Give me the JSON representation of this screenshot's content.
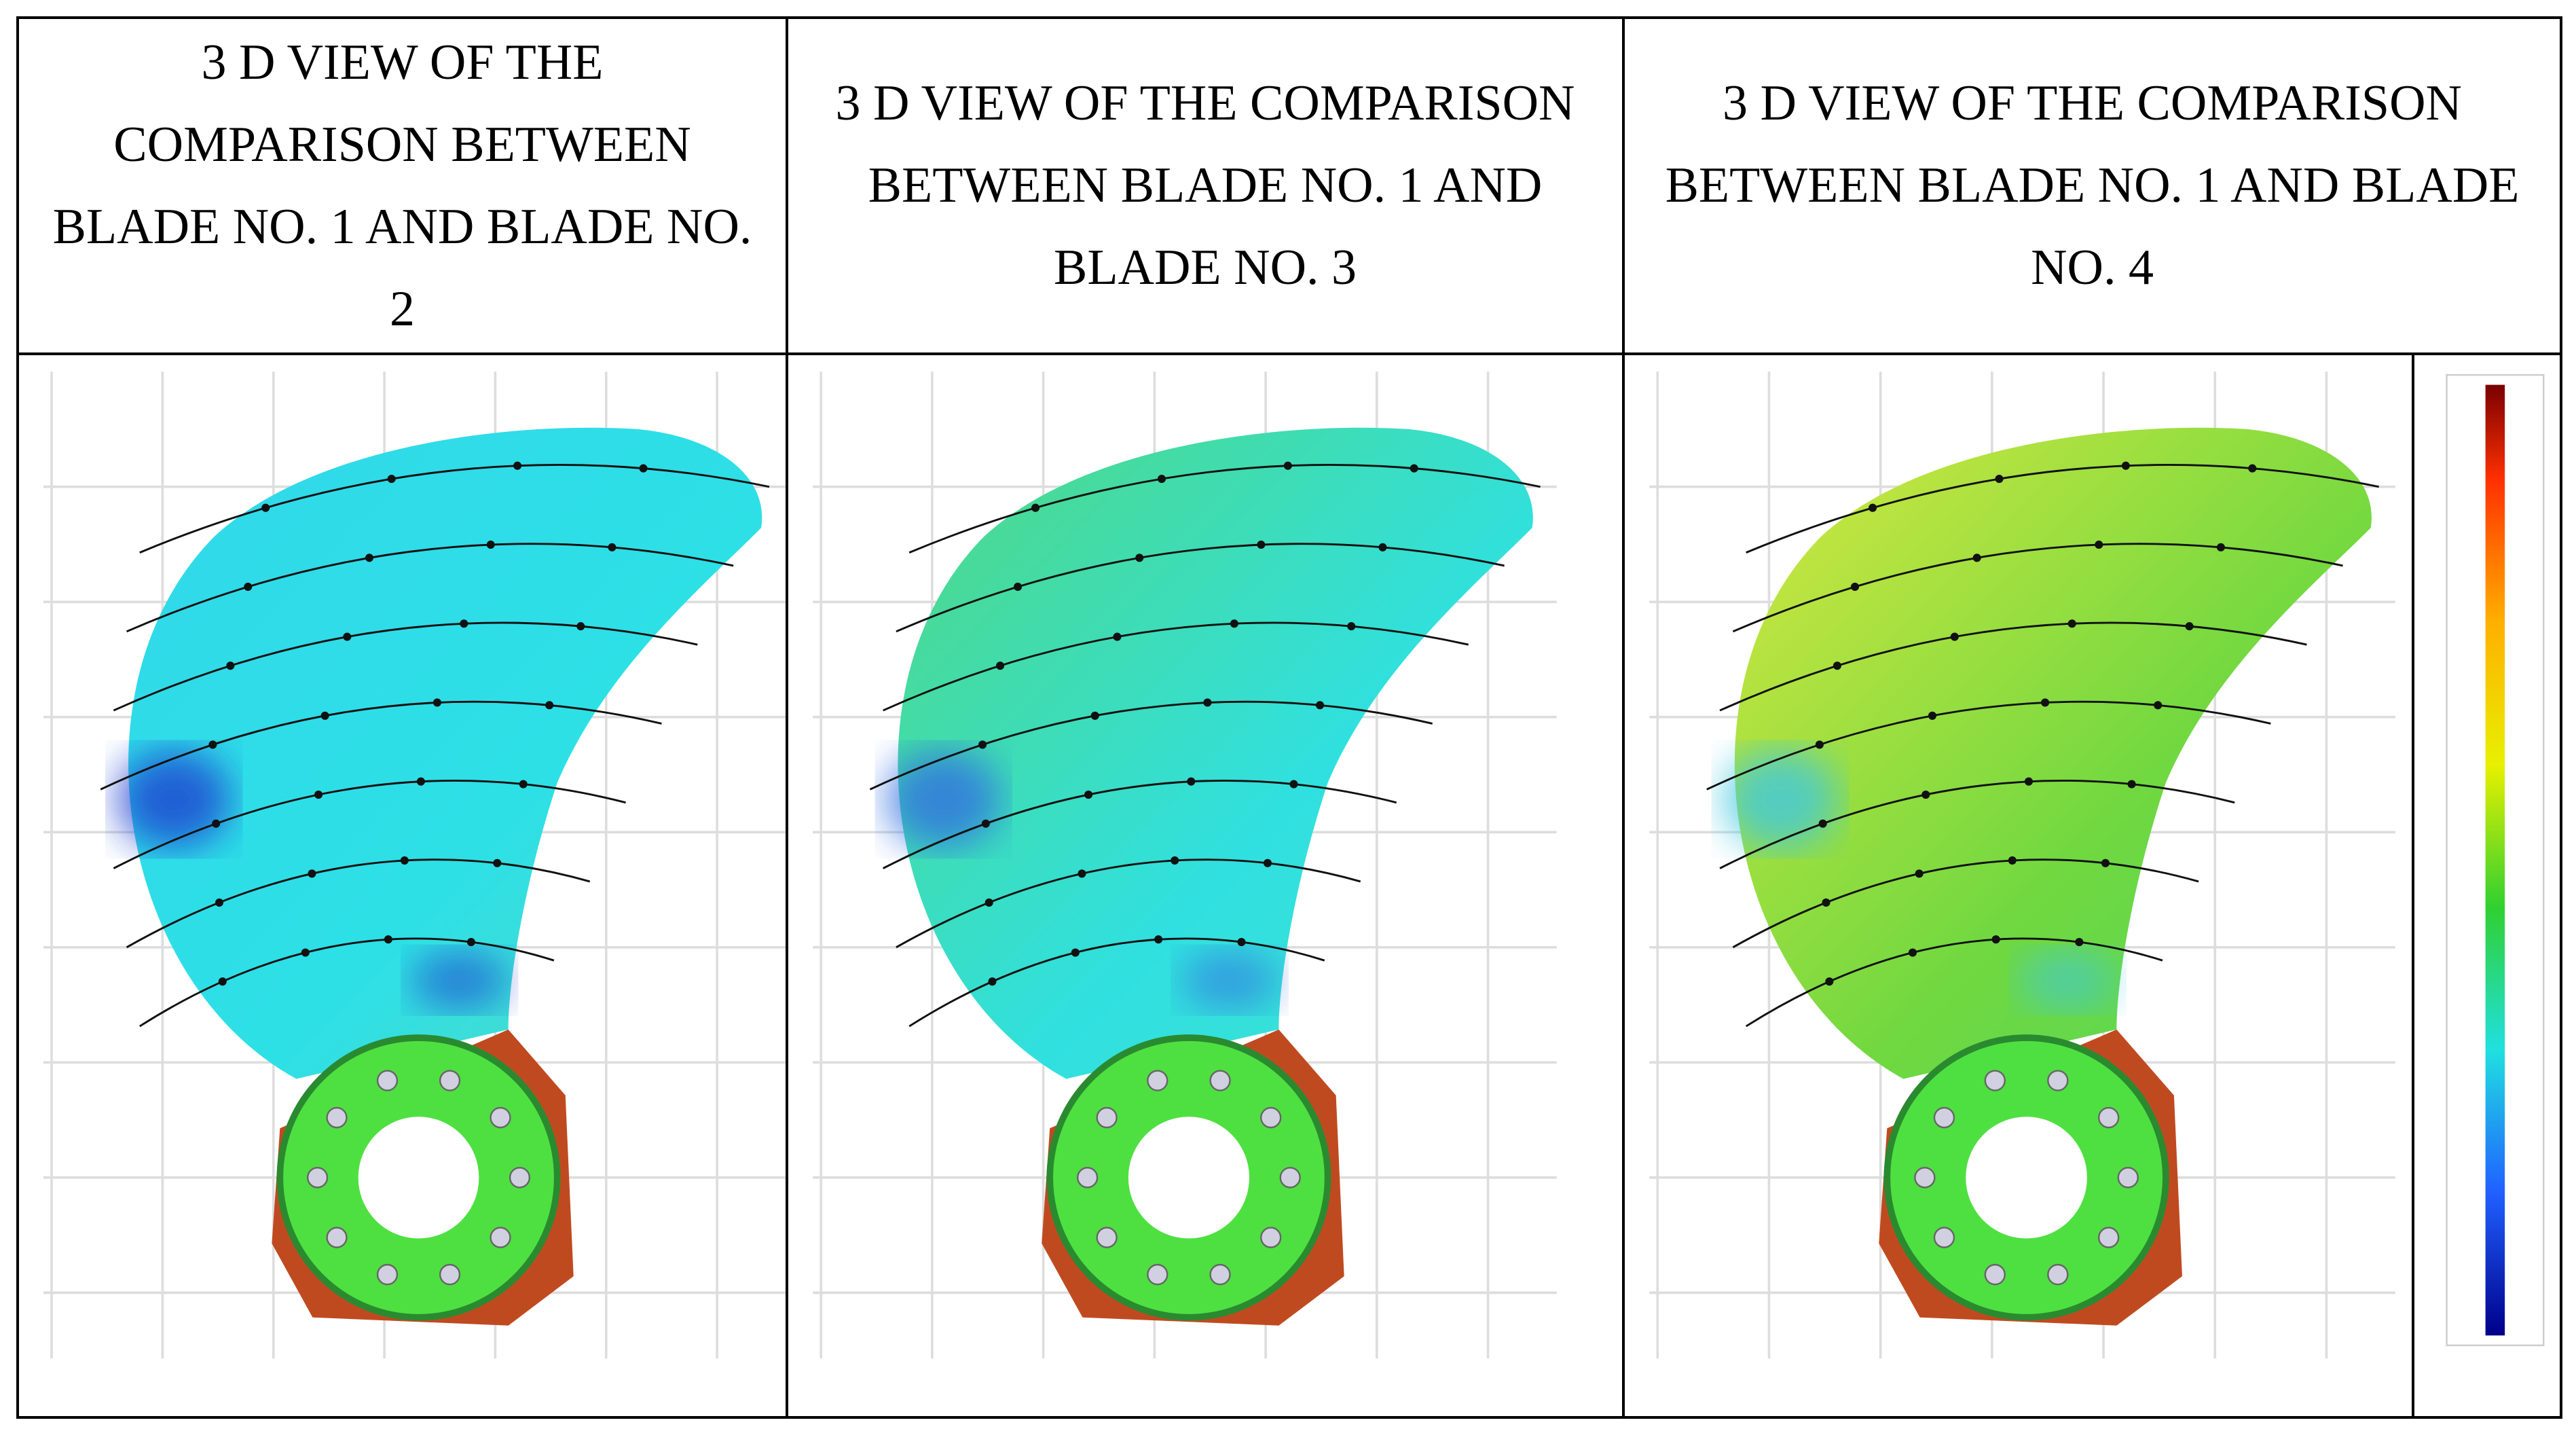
{
  "table": {
    "headers": [
      "3 D VIEW OF THE COMPARISON BETWEEN BLADE NO. 1 AND BLADE NO. 2",
      "3 D VIEW OF THE COMPARISON BETWEEN BLADE NO. 1 AND BLADE NO. 3",
      "3 D VIEW OF THE COMPARISON BETWEEN BLADE NO. 1 AND BLADE NO. 4"
    ]
  }
}
